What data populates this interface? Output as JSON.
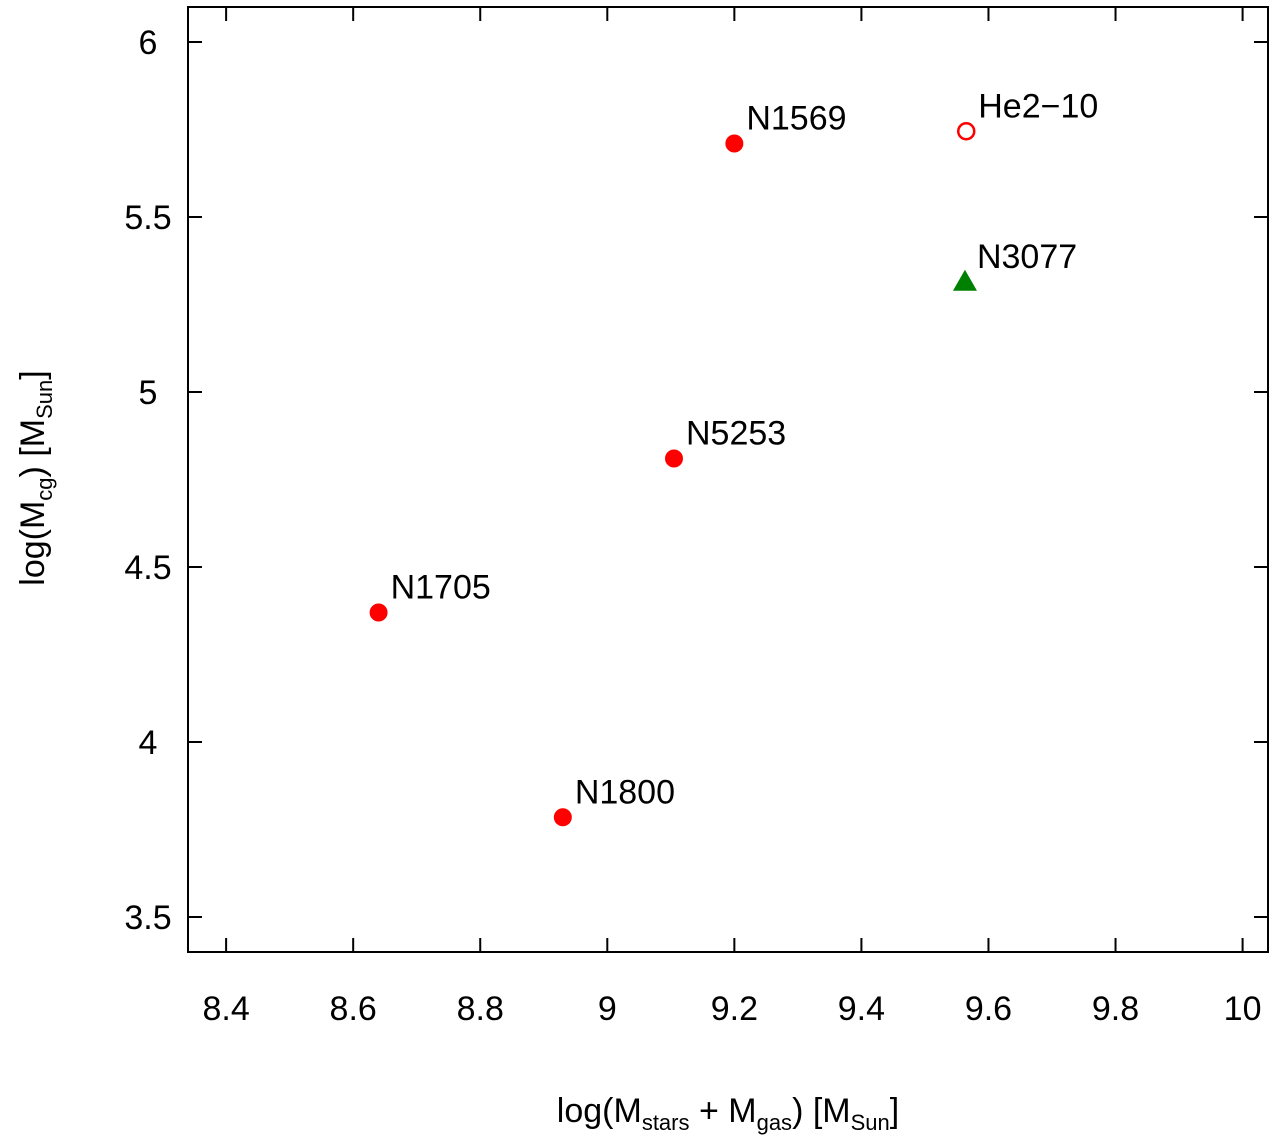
{
  "chart_data": {
    "type": "scatter",
    "xlabel": {
      "prefix": "log(M",
      "sub1": "stars",
      "mid": " + M",
      "sub2": "gas",
      "mid2": ") [M",
      "sub3": "Sun",
      "suffix": "]"
    },
    "ylabel": {
      "prefix": "log(M",
      "sub1": "cg",
      "mid": ")  [M",
      "sub2": "Sun",
      "suffix": "]"
    },
    "xlim": [
      8.34,
      10.04
    ],
    "ylim": [
      3.4,
      6.1
    ],
    "x_ticks": [
      8.4,
      8.6,
      8.8,
      9,
      9.2,
      9.4,
      9.6,
      9.8,
      10
    ],
    "x_tick_labels": [
      "8.4",
      "8.6",
      "8.8",
      "9",
      "9.2",
      "9.4",
      "9.6",
      "9.8",
      "10"
    ],
    "y_ticks": [
      3.5,
      4,
      4.5,
      5,
      5.5,
      6
    ],
    "y_tick_labels": [
      "3.5",
      "4",
      "4.5",
      "5",
      "5.5",
      "6"
    ],
    "grid": false,
    "colors": {
      "red": "#ff0000",
      "green": "#008000"
    },
    "points": [
      {
        "label": "N1569",
        "x": 9.2,
        "y": 5.71,
        "marker": "filled-circle",
        "color": "#ff0000"
      },
      {
        "label": "He2−10",
        "x": 9.565,
        "y": 5.745,
        "marker": "open-circle",
        "color": "#ff0000"
      },
      {
        "label": "N3077",
        "x": 9.563,
        "y": 5.315,
        "marker": "filled-triangle",
        "color": "#008000"
      },
      {
        "label": "N5253",
        "x": 9.105,
        "y": 4.81,
        "marker": "filled-circle",
        "color": "#ff0000"
      },
      {
        "label": "N1705",
        "x": 8.64,
        "y": 4.37,
        "marker": "filled-circle",
        "color": "#ff0000"
      },
      {
        "label": "N1800",
        "x": 8.93,
        "y": 3.785,
        "marker": "filled-circle",
        "color": "#ff0000"
      }
    ]
  }
}
